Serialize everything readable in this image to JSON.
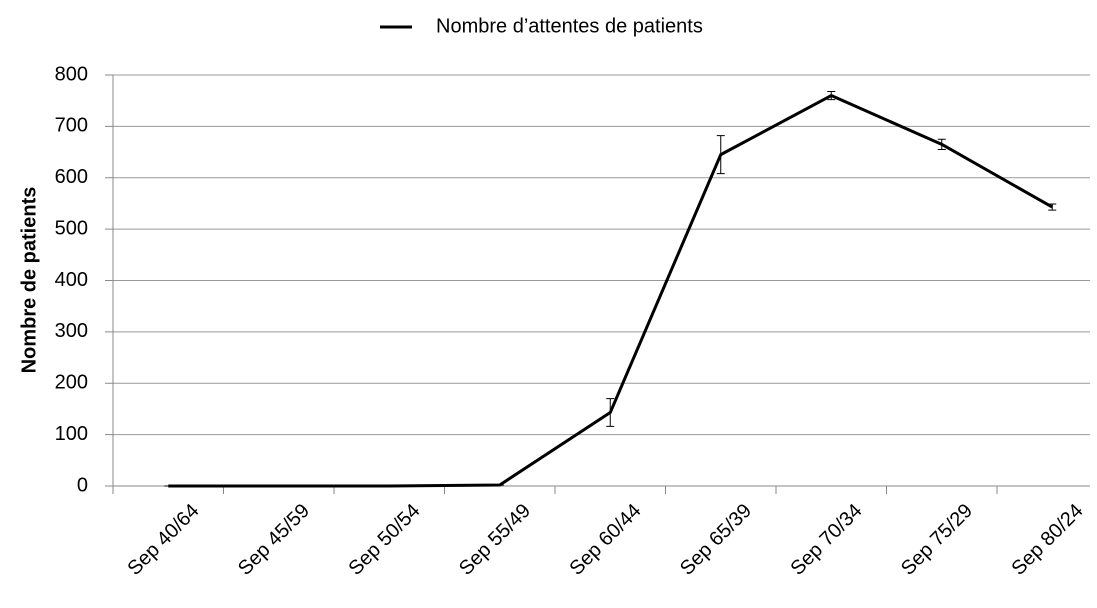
{
  "chart_data": {
    "type": "line",
    "legend_label_position": "top",
    "y_label": "Nombre de patients",
    "categories": [
      "Sep 40/64",
      "Sep 45/59",
      "Sep 50/54",
      "Sep 55/49",
      "Sep 60/44",
      "Sep 65/39",
      "Sep 70/34",
      "Sep 75/29",
      "Sep 80/24"
    ],
    "series": [
      {
        "name": "Nombre d’attentes de patients",
        "color": "#000000",
        "values": [
          0,
          0,
          0,
          2,
          143,
          645,
          760,
          665,
          543
        ],
        "errors": [
          0,
          0,
          0,
          0,
          27,
          37,
          8,
          10,
          6
        ]
      }
    ],
    "ylim": [
      0,
      800
    ],
    "yticks": [
      0,
      100,
      200,
      300,
      400,
      500,
      600,
      700,
      800
    ],
    "grid": true
  }
}
